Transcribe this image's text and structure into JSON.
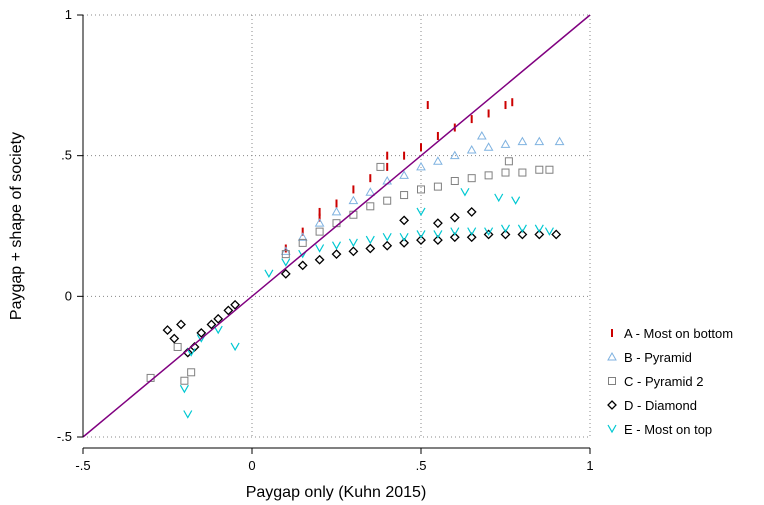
{
  "chart_data": {
    "type": "scatter",
    "title": "",
    "xlabel": "Paygap only (Kuhn 2015)",
    "ylabel": "Paygap + shape of society",
    "xlim": [
      -0.5,
      1
    ],
    "ylim": [
      -0.5,
      1
    ],
    "x_ticks": [
      {
        "value": -0.5,
        "label": "-.5"
      },
      {
        "value": 0,
        "label": "0"
      },
      {
        "value": 0.5,
        "label": ".5"
      },
      {
        "value": 1,
        "label": "1"
      }
    ],
    "y_ticks": [
      {
        "value": -0.5,
        "label": "-.5"
      },
      {
        "value": 0,
        "label": "0"
      },
      {
        "value": 0.5,
        "label": ".5"
      },
      {
        "value": 1,
        "label": "1"
      }
    ],
    "grid": true,
    "legend_position": "right",
    "reference_line": {
      "kind": "45-degree line",
      "x": [
        -0.5,
        1
      ],
      "y": [
        -0.5,
        1
      ],
      "color": "#800080"
    },
    "series": [
      {
        "name": "A - Most on bottom",
        "marker": "tick",
        "color": "#cc0000",
        "x": [
          0.1,
          0.15,
          0.2,
          0.25,
          0.3,
          0.35,
          0.4,
          0.45,
          0.5,
          0.55,
          0.6,
          0.65,
          0.7,
          0.75,
          0.77,
          0.2,
          0.52,
          0.4
        ],
        "y": [
          0.17,
          0.23,
          0.28,
          0.33,
          0.38,
          0.42,
          0.46,
          0.5,
          0.53,
          0.57,
          0.6,
          0.63,
          0.65,
          0.68,
          0.69,
          0.3,
          0.68,
          0.5
        ]
      },
      {
        "name": "B - Pyramid",
        "marker": "triangle",
        "color": "#7fb2e0",
        "x": [
          0.1,
          0.15,
          0.2,
          0.25,
          0.3,
          0.35,
          0.4,
          0.45,
          0.5,
          0.55,
          0.6,
          0.65,
          0.7,
          0.75,
          0.8,
          0.85,
          0.91,
          0.68
        ],
        "y": [
          0.16,
          0.21,
          0.26,
          0.3,
          0.34,
          0.37,
          0.41,
          0.43,
          0.46,
          0.48,
          0.5,
          0.52,
          0.53,
          0.54,
          0.55,
          0.55,
          0.55,
          0.57
        ]
      },
      {
        "name": "C - Pyramid 2",
        "marker": "square",
        "color": "#808080",
        "x": [
          -0.3,
          -0.22,
          -0.2,
          -0.18,
          0.1,
          0.15,
          0.2,
          0.25,
          0.3,
          0.35,
          0.4,
          0.45,
          0.5,
          0.55,
          0.6,
          0.65,
          0.7,
          0.75,
          0.8,
          0.85,
          0.88,
          0.38,
          0.76
        ],
        "y": [
          -0.29,
          -0.18,
          -0.3,
          -0.27,
          0.15,
          0.19,
          0.23,
          0.26,
          0.29,
          0.32,
          0.34,
          0.36,
          0.38,
          0.39,
          0.41,
          0.42,
          0.43,
          0.44,
          0.44,
          0.45,
          0.45,
          0.46,
          0.48
        ]
      },
      {
        "name": "D - Diamond",
        "marker": "diamond",
        "color": "#000000",
        "x": [
          -0.25,
          -0.23,
          -0.21,
          -0.19,
          -0.17,
          -0.15,
          -0.12,
          -0.1,
          -0.07,
          -0.05,
          0.1,
          0.15,
          0.2,
          0.25,
          0.3,
          0.35,
          0.4,
          0.45,
          0.5,
          0.55,
          0.6,
          0.65,
          0.7,
          0.75,
          0.8,
          0.85,
          0.9,
          0.45,
          0.55,
          0.6,
          0.65
        ],
        "y": [
          -0.12,
          -0.15,
          -0.1,
          -0.2,
          -0.18,
          -0.13,
          -0.1,
          -0.08,
          -0.05,
          -0.03,
          0.08,
          0.11,
          0.13,
          0.15,
          0.16,
          0.17,
          0.18,
          0.19,
          0.2,
          0.2,
          0.21,
          0.21,
          0.22,
          0.22,
          0.22,
          0.22,
          0.22,
          0.27,
          0.26,
          0.28,
          0.3
        ]
      },
      {
        "name": "E - Most on top",
        "marker": "v",
        "color": "#00c8d2",
        "x": [
          -0.2,
          -0.19,
          -0.18,
          -0.15,
          -0.1,
          -0.05,
          0.05,
          0.1,
          0.15,
          0.2,
          0.25,
          0.3,
          0.35,
          0.4,
          0.45,
          0.5,
          0.55,
          0.6,
          0.65,
          0.7,
          0.75,
          0.8,
          0.85,
          0.88,
          0.63,
          0.73,
          0.78,
          0.5
        ],
        "y": [
          -0.33,
          -0.42,
          -0.2,
          -0.15,
          -0.12,
          -0.18,
          0.08,
          0.12,
          0.15,
          0.17,
          0.18,
          0.19,
          0.2,
          0.21,
          0.21,
          0.22,
          0.22,
          0.23,
          0.23,
          0.23,
          0.24,
          0.24,
          0.24,
          0.23,
          0.37,
          0.35,
          0.34,
          0.3
        ]
      }
    ]
  }
}
